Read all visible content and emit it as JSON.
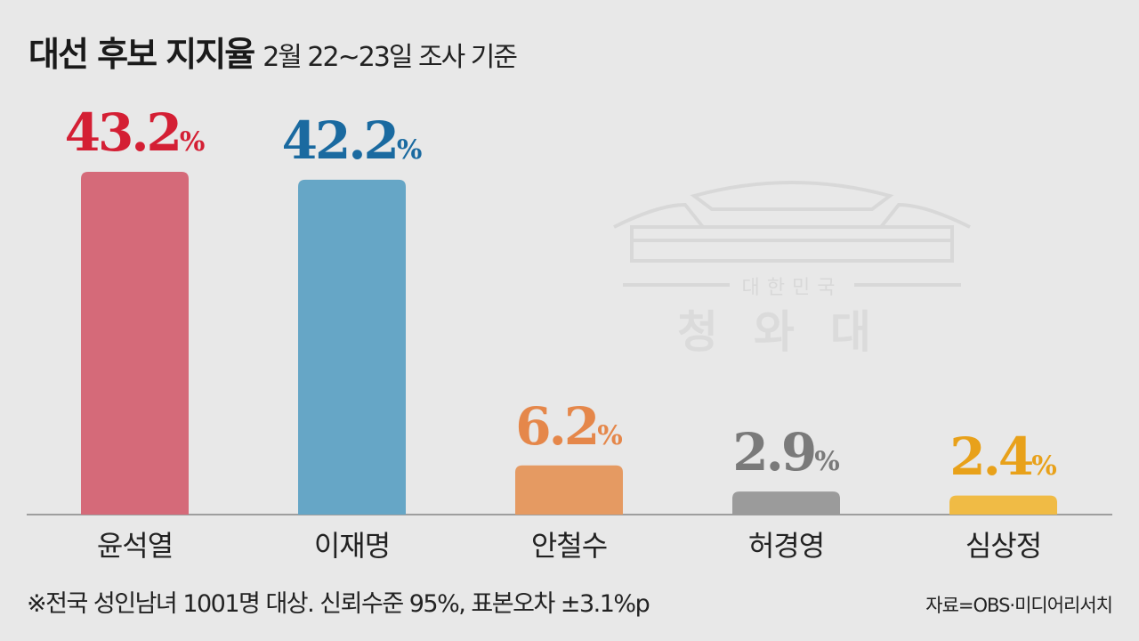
{
  "header": {
    "title": "대선 후보 지지율",
    "subtitle": "2월 22~23일 조사 기준"
  },
  "watermark": {
    "line1": "대한민국",
    "line2": "청와대"
  },
  "footnote": "※전국 성인남녀 1001명 대상. 신뢰수준 95%, 표본오차 ±3.1%p",
  "source": "자료=OBS·미디어리서치",
  "chart_data": {
    "type": "bar",
    "title": "대선 후보 지지율",
    "subtitle": "2월 22~23일 조사 기준",
    "categories": [
      "윤석열",
      "이재명",
      "안철수",
      "허경영",
      "심상정"
    ],
    "values": [
      43.2,
      42.2,
      6.2,
      2.9,
      2.4
    ],
    "value_labels": [
      "43.2",
      "42.2",
      "6.2",
      "2.9",
      "2.4"
    ],
    "unit": "%",
    "bar_colors": [
      "#d56a79",
      "#66a6c6",
      "#e59a62",
      "#9b9b9b",
      "#f0bb45"
    ],
    "label_colors": [
      "#d41f34",
      "#1a6aa0",
      "#e5874a",
      "#7a7a7a",
      "#e8a11a"
    ],
    "xlabel": "",
    "ylabel": "",
    "ylim": [
      0,
      43.2
    ],
    "grid": false
  }
}
